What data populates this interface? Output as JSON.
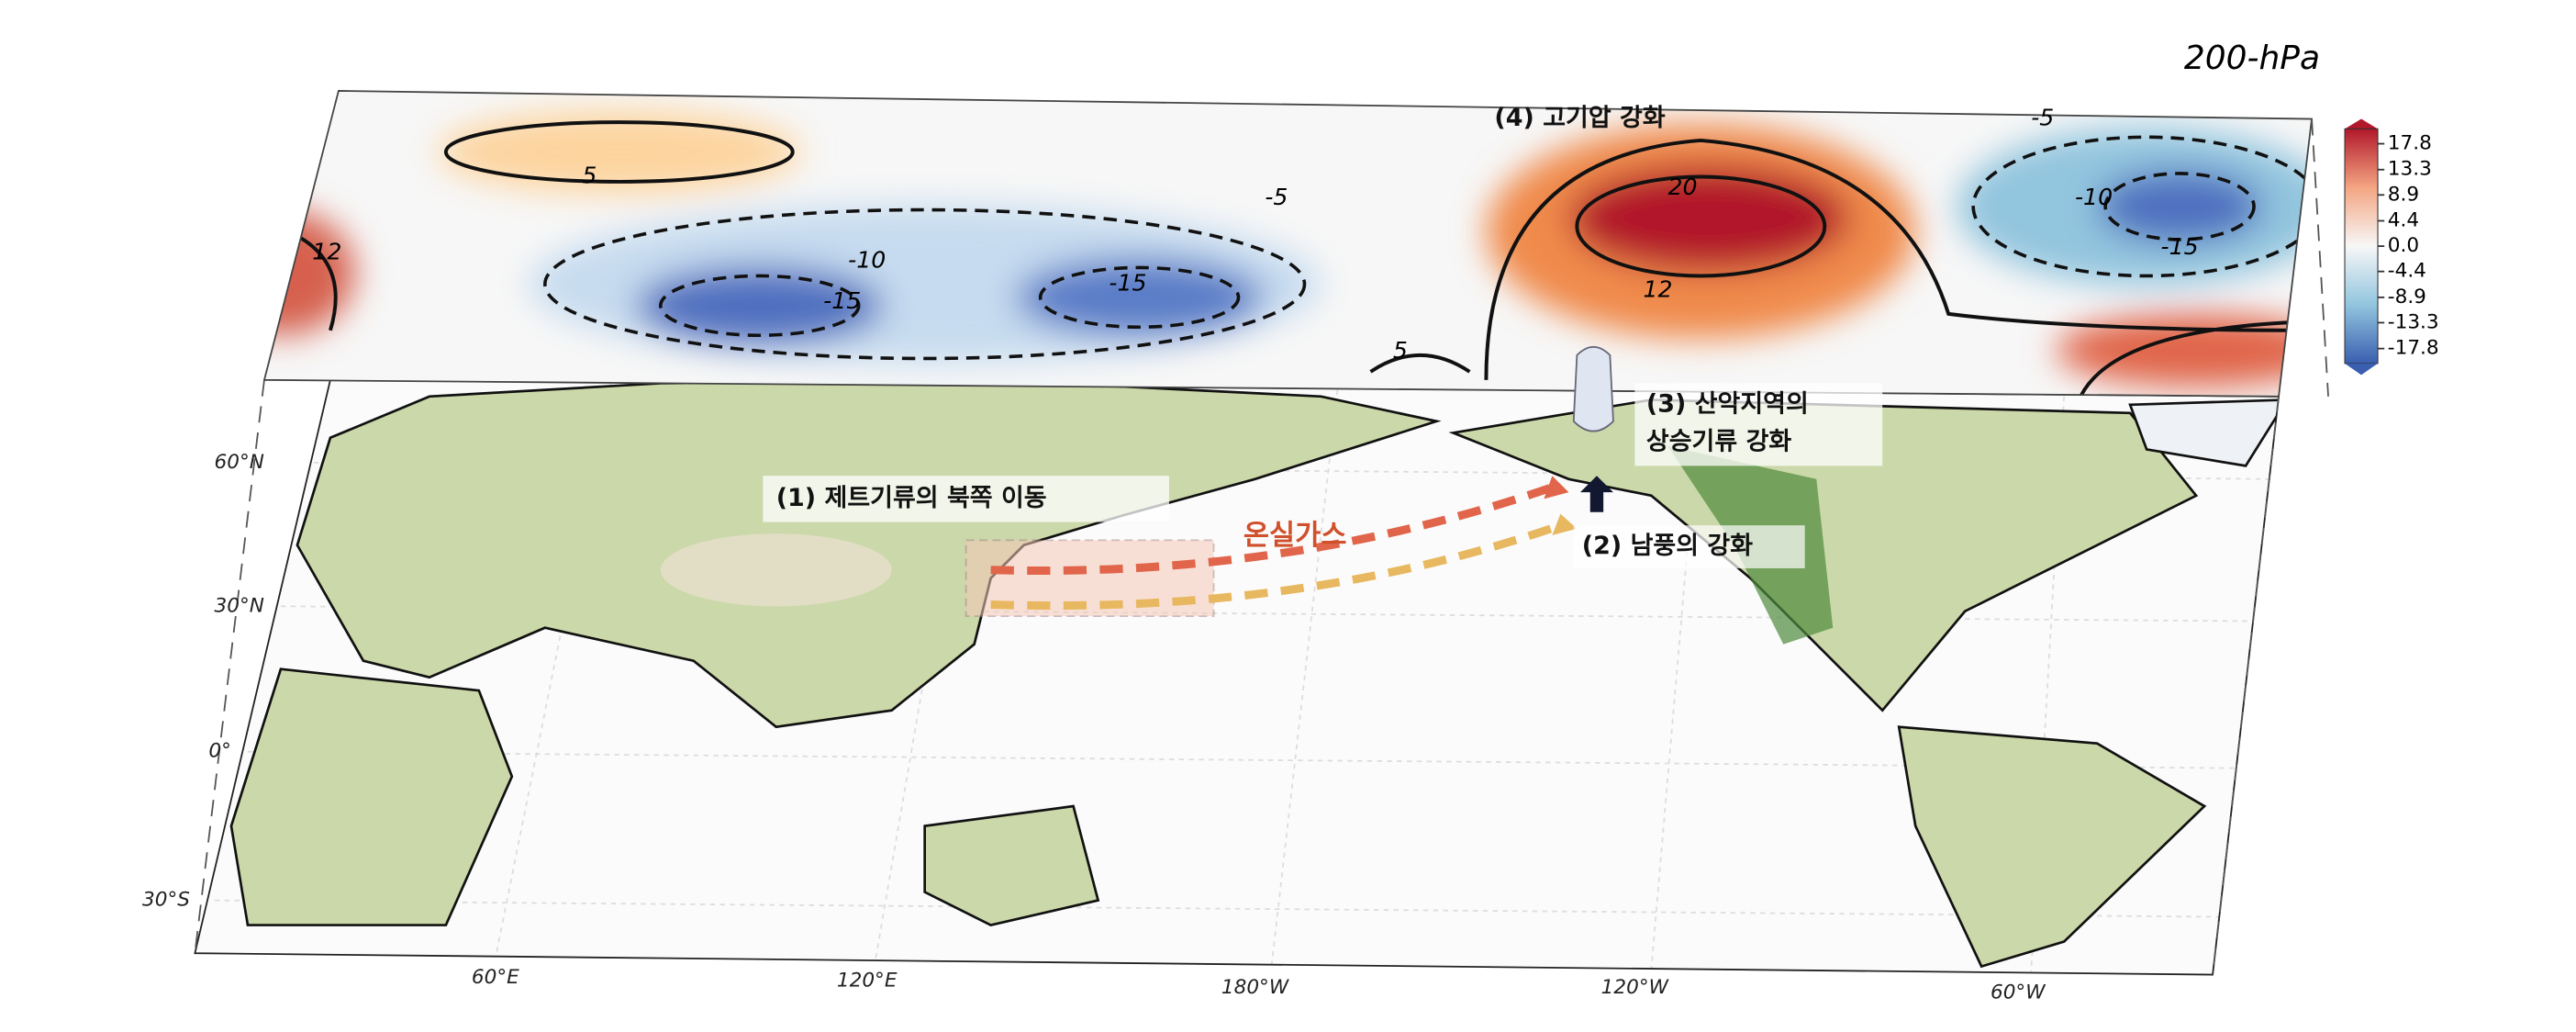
{
  "title": "200-hPa",
  "annotations": {
    "high": "(4) 고기압 강화",
    "mountain": [
      "(3) 산악지역의",
      "상승기류 강화"
    ],
    "jet": "(1) 제트기류의 북쪽 이동",
    "ghg": "온실가스",
    "wind": "(2) 남풍의 강화"
  },
  "colorbar": {
    "ticks": [
      17.8,
      13.3,
      8.9,
      4.4,
      {
        "value": 0,
        "label": "0.0"
      },
      -4.4,
      -8.9,
      -13.3,
      -17.8
    ]
  },
  "contour_labels": [
    5,
    12,
    -10,
    -15,
    -15,
    -5,
    5,
    20,
    12,
    -5,
    -10,
    -15
  ],
  "lat_labels": [
    "60°N",
    "30°N",
    "0°",
    "30°S"
  ],
  "lon_labels": [
    "60°E",
    "120°E",
    "180°W",
    "120°W",
    "60°W"
  ]
}
